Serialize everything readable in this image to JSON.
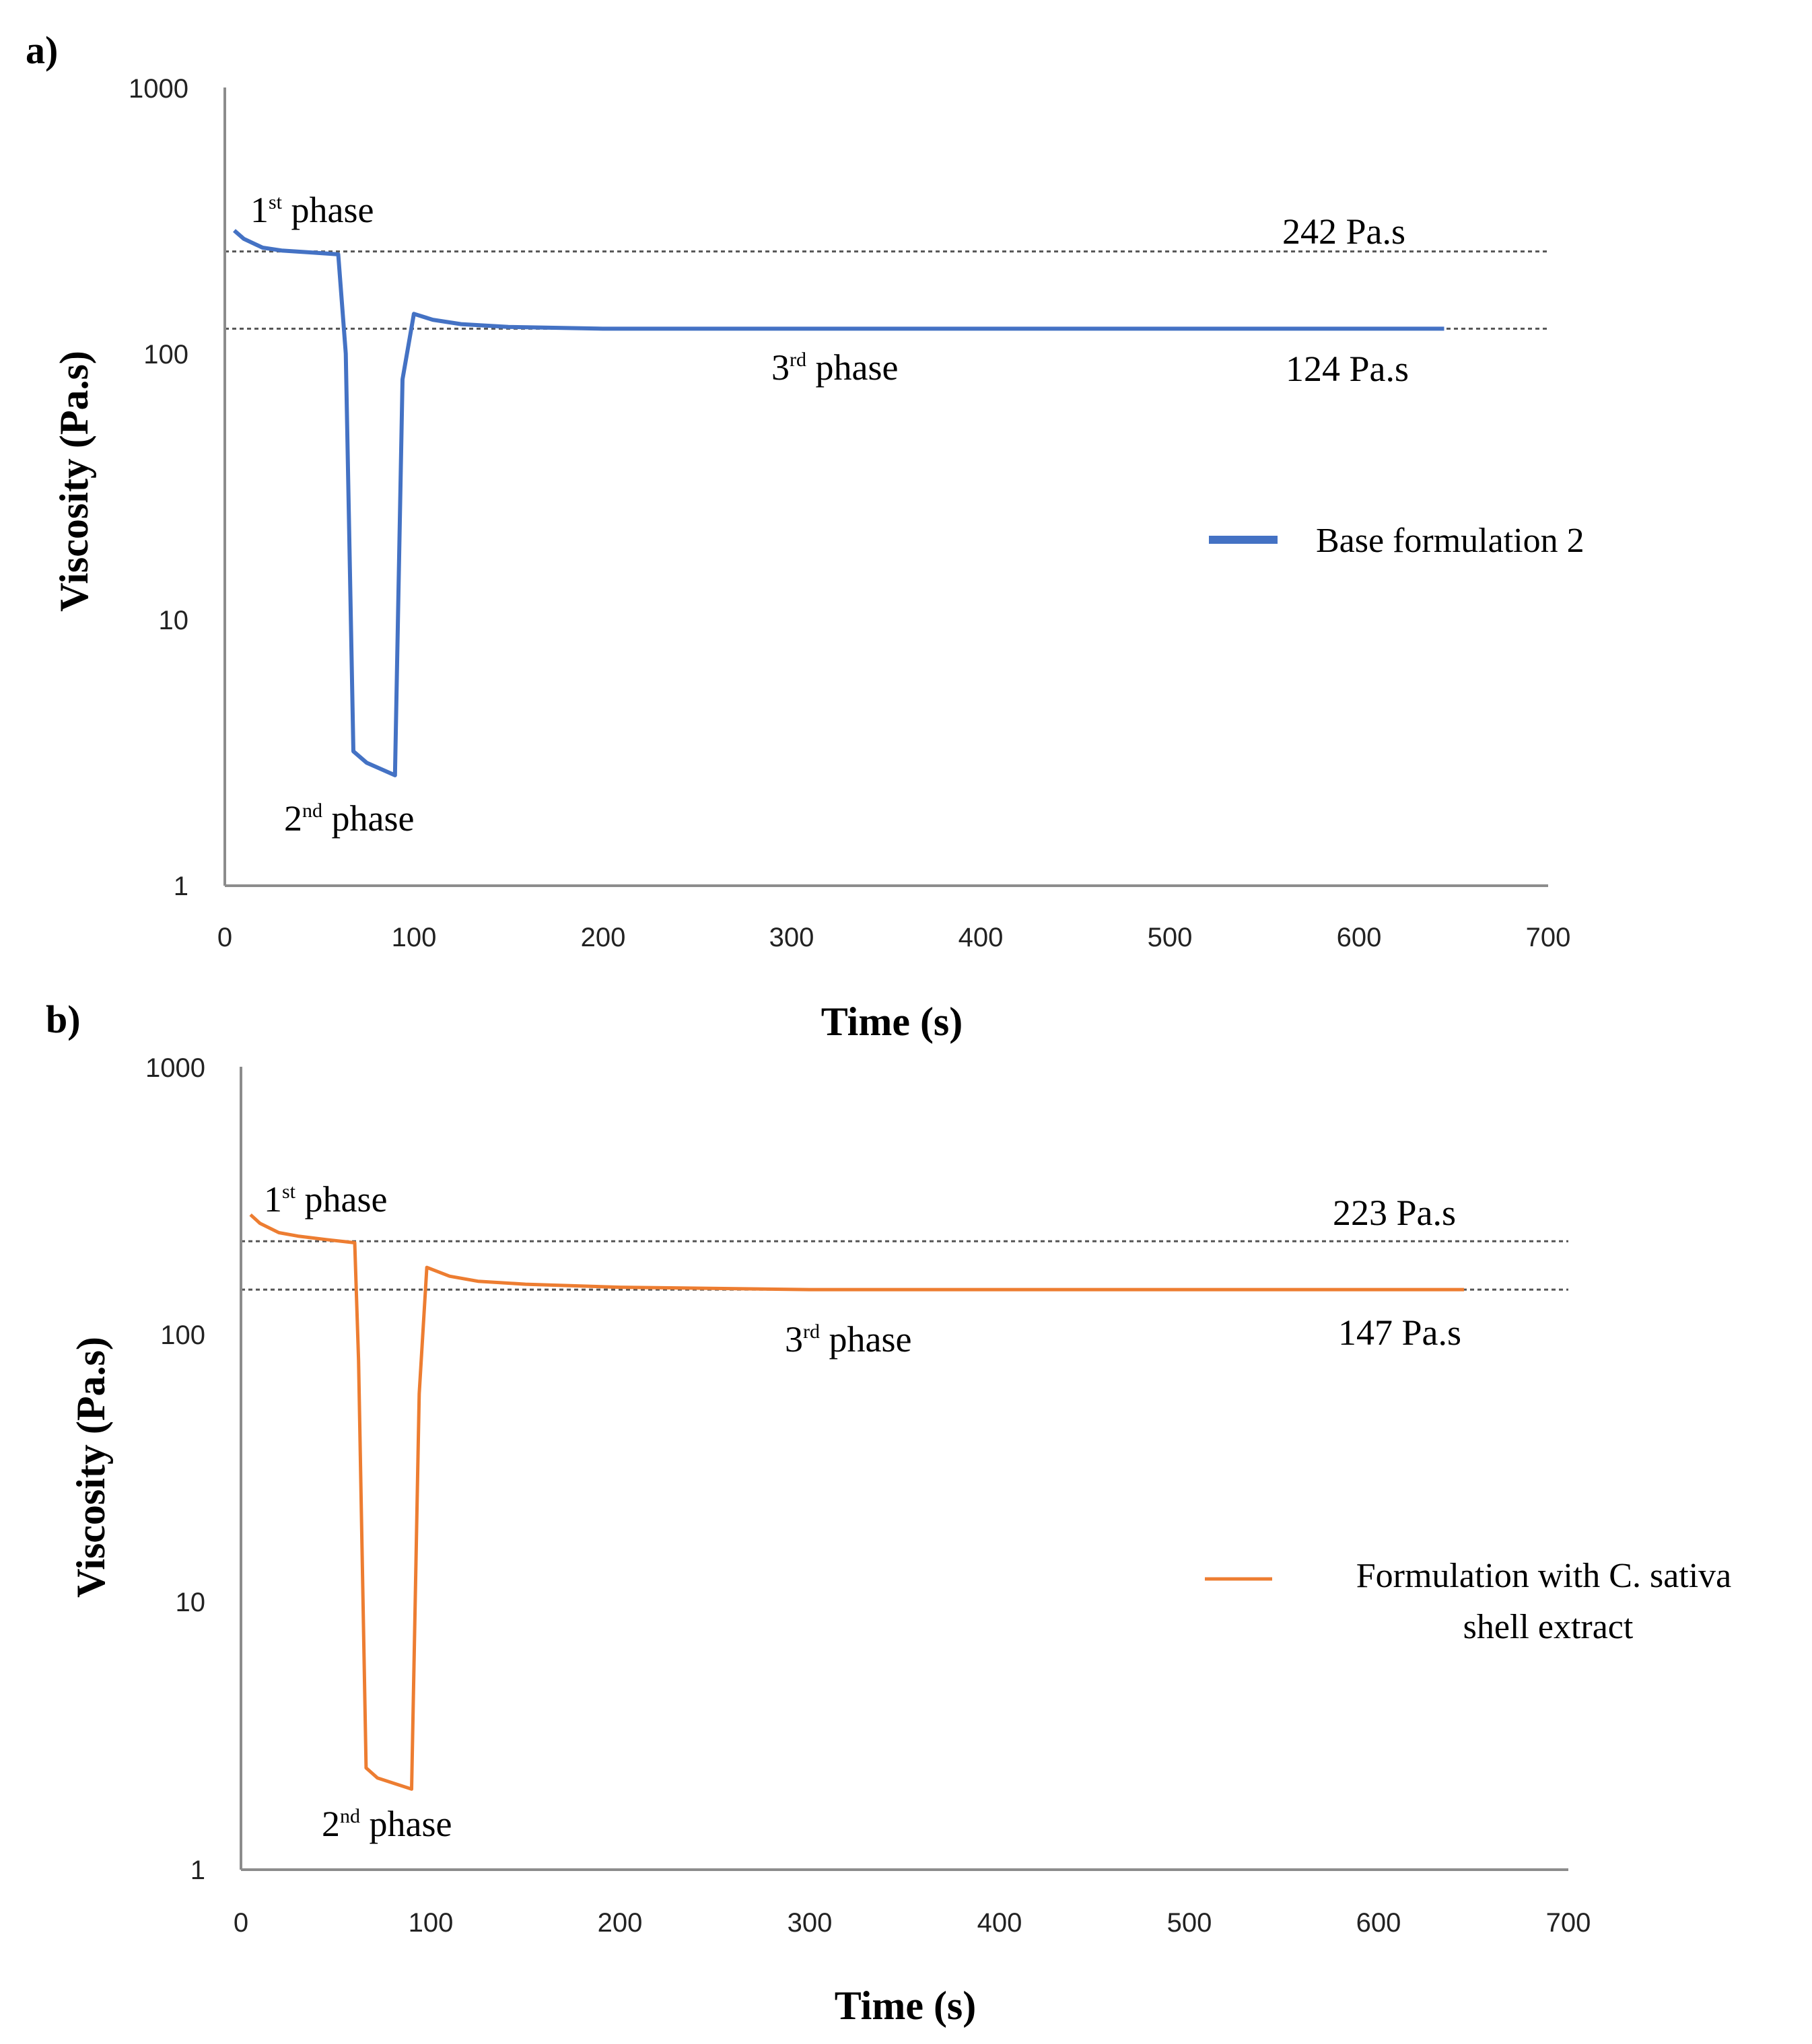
{
  "chart_data": [
    {
      "type": "line",
      "panel_label": "a)",
      "xlabel": "Time (s)",
      "ylabel": "Viscosity (Pa.s)",
      "xlim": [
        0,
        700
      ],
      "ylim": [
        1,
        1000
      ],
      "yscale": "log",
      "x_ticks": [
        "0",
        "100",
        "200",
        "300",
        "400",
        "500",
        "600",
        "700"
      ],
      "y_ticks": [
        "1",
        "10",
        "100",
        "1000"
      ],
      "legend_position": "right",
      "series": [
        {
          "name": "Base formulation 2",
          "color": "#4472c4",
          "x": [
            5,
            10,
            20,
            30,
            45,
            60,
            64,
            68,
            75,
            90,
            94,
            100,
            110,
            125,
            150,
            200,
            300,
            400,
            500,
            600,
            645
          ],
          "y": [
            290,
            270,
            250,
            244,
            240,
            236,
            100,
            3.2,
            2.9,
            2.6,
            80,
            141,
            134,
            129,
            126,
            124,
            124,
            124,
            124,
            124,
            124
          ]
        }
      ],
      "reference_lines": [
        {
          "value": 242,
          "label": "242 Pa.s"
        },
        {
          "value": 124,
          "label": "124 Pa.s"
        }
      ],
      "annotations": [
        {
          "id": "phase1",
          "base": "1",
          "sup": "st",
          "rest": " phase"
        },
        {
          "id": "phase2",
          "base": "2",
          "sup": "nd",
          "rest": " phase"
        },
        {
          "id": "phase3",
          "base": "3",
          "sup": "rd",
          "rest": " phase"
        }
      ]
    },
    {
      "type": "line",
      "panel_label": "b)",
      "xlabel": "Time (s)",
      "ylabel": "Viscosity (Pa.s)",
      "xlim": [
        0,
        700
      ],
      "ylim": [
        1,
        1000
      ],
      "yscale": "log",
      "x_ticks": [
        "0",
        "100",
        "200",
        "300",
        "400",
        "500",
        "600",
        "700"
      ],
      "y_ticks": [
        "1",
        "10",
        "100",
        "1000"
      ],
      "legend_position": "right",
      "series": [
        {
          "name": "Formulation with C. sativa shell extract",
          "legend_lines": [
            "Formulation with C. sativa",
            "shell extract"
          ],
          "color": "#ed7d31",
          "x": [
            5,
            10,
            20,
            30,
            45,
            60,
            62,
            66,
            72,
            90,
            94,
            98,
            110,
            125,
            150,
            200,
            300,
            400,
            500,
            600,
            645
          ],
          "y": [
            280,
            260,
            240,
            233,
            226,
            220,
            80,
            2.4,
            2.2,
            2.0,
            60,
            178,
            165,
            158,
            154,
            150,
            147,
            147,
            147,
            147,
            147
          ]
        }
      ],
      "reference_lines": [
        {
          "value": 223,
          "label": "223 Pa.s"
        },
        {
          "value": 147,
          "label": "147 Pa.s"
        }
      ],
      "annotations": [
        {
          "id": "phase1",
          "base": "1",
          "sup": "st",
          "rest": " phase"
        },
        {
          "id": "phase2",
          "base": "2",
          "sup": "nd",
          "rest": " phase"
        },
        {
          "id": "phase3",
          "base": "3",
          "sup": "rd",
          "rest": " phase"
        }
      ]
    }
  ]
}
